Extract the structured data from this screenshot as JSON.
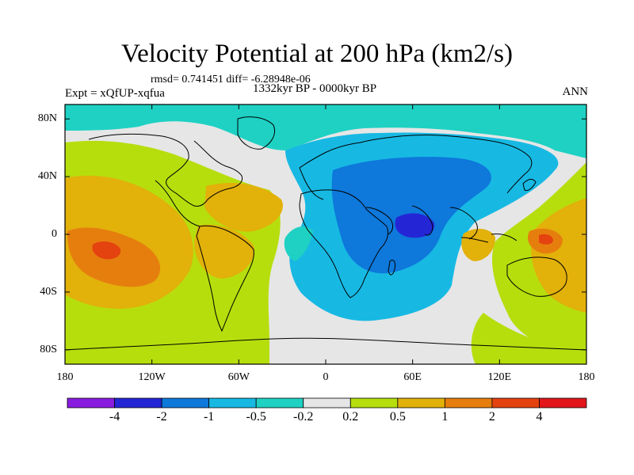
{
  "title": "Velocity Potential at 200 hPa (km2/s)",
  "stats": "rmsd= 0.741451 diff= -6.28948e-06",
  "experiment": "Expt = xQfUP-xqfua",
  "period": "1332kyr BP - 0000kyr BP",
  "season": "ANN",
  "chart_data": {
    "type": "filled-contour-map",
    "variable": "Velocity Potential at 200 hPa",
    "units": "km2/s",
    "projection": "cylindrical equidistant",
    "lon_range": [
      -180,
      180
    ],
    "lat_range": [
      -90,
      90
    ],
    "x_tick_labels": [
      "180",
      "120W",
      "60W",
      "0",
      "60E",
      "120E",
      "180"
    ],
    "x_tick_values": [
      -180,
      -120,
      -60,
      0,
      60,
      120,
      180
    ],
    "y_tick_labels": [
      "80N",
      "40N",
      "0",
      "40S",
      "80S"
    ],
    "y_tick_values": [
      80,
      40,
      0,
      -40,
      -80
    ],
    "colorbar": {
      "levels": [
        "-4",
        "-2",
        "-1",
        "-0.5",
        "-0.2",
        "0.2",
        "0.5",
        "1",
        "2",
        "4"
      ],
      "colors": [
        "#8a1ce0",
        "#2426d6",
        "#0e78db",
        "#17b9e3",
        "#1ed1c3",
        "#e6e6e6",
        "#b6de0d",
        "#e2b10a",
        "#e67e0e",
        "#e4420f",
        "#e2161b"
      ]
    },
    "regions": [
      {
        "label": "polar north band",
        "level_class": "-0.5 to -0.2"
      },
      {
        "label": "eurasia-africa-indian ocean negative center",
        "level_class": "-4 to -2",
        "center_lon": 55,
        "center_lat": 5
      },
      {
        "label": "eastern pacific positive center",
        "level_class": "2 to 4",
        "center_lon": -155,
        "center_lat": -10
      },
      {
        "label": "western pacific positive",
        "level_class": "1 to 2",
        "center_lon": 150,
        "center_lat": -5
      },
      {
        "label": "atlantic near-zero band",
        "level_class": "-0.2 to 0.2"
      }
    ]
  }
}
